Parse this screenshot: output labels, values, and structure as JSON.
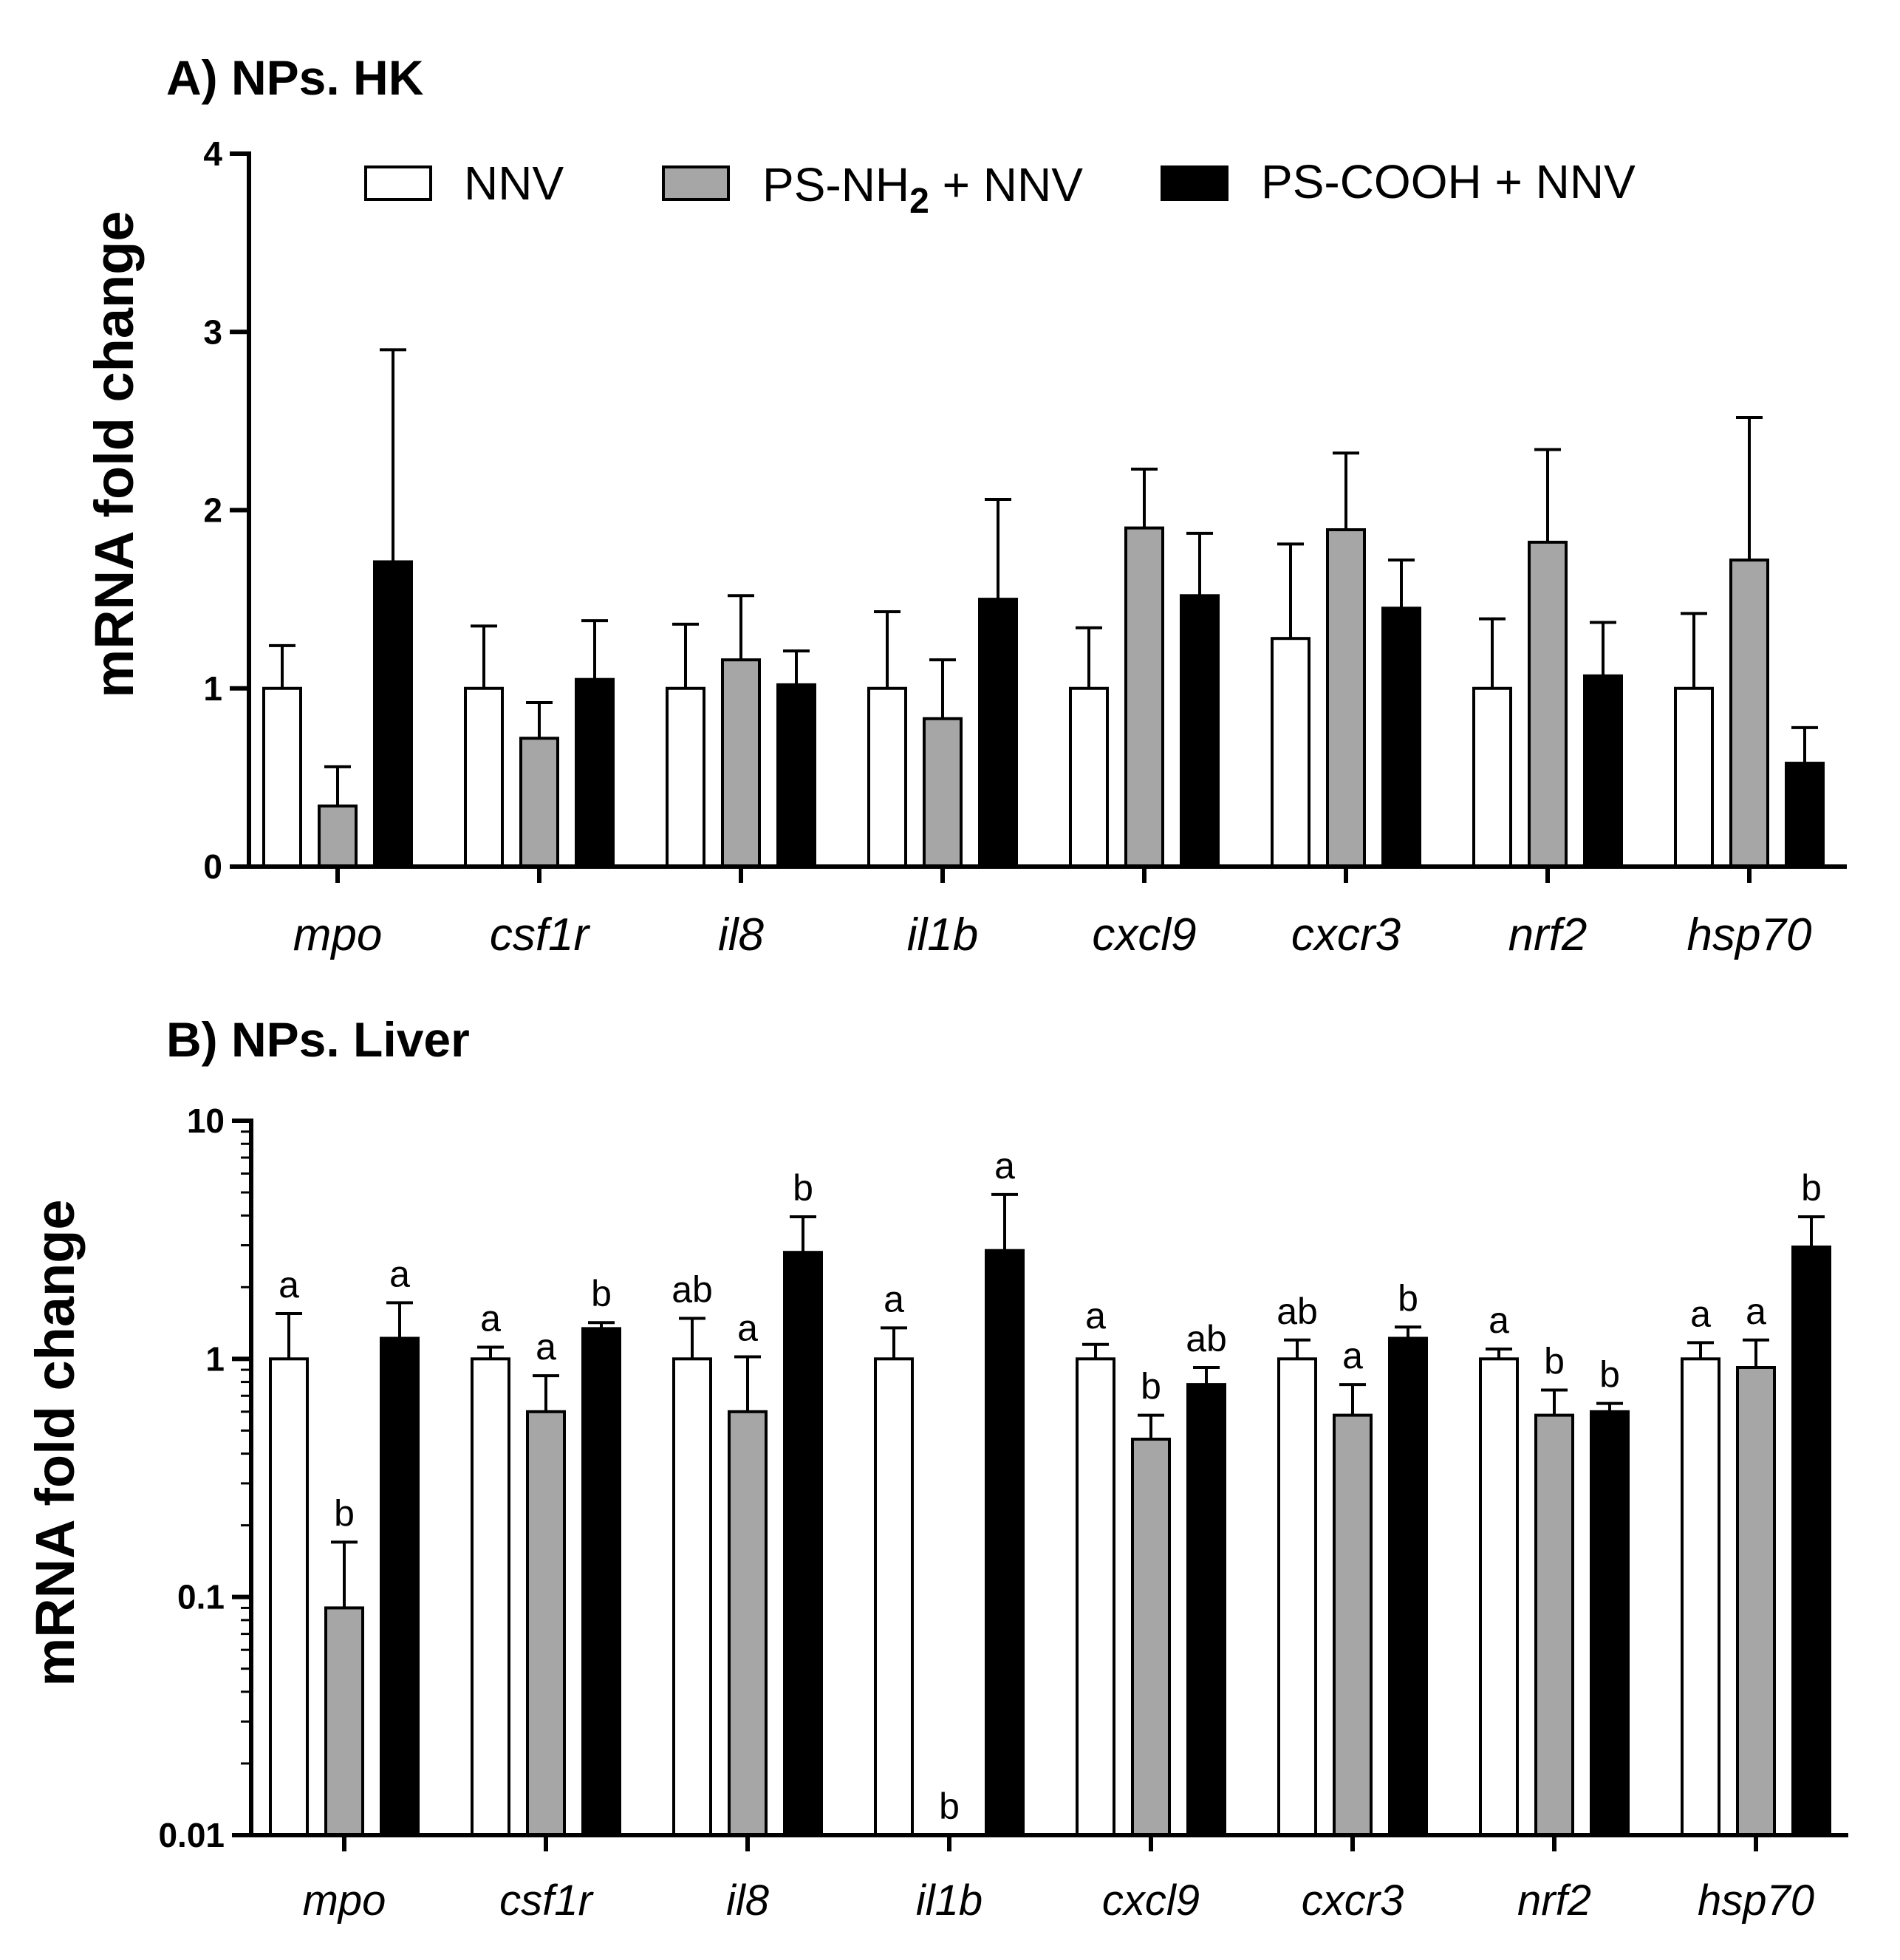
{
  "chart_data": [
    {
      "panel": "A",
      "type": "bar",
      "title": "A) NPs. HK",
      "ylabel": "mRNA fold change",
      "xlabel": "",
      "yscale": "linear",
      "ylim": [
        0,
        4
      ],
      "yticks": [
        "0",
        "1",
        "2",
        "3",
        "4"
      ],
      "legend": {
        "placement": "top",
        "entries": [
          {
            "label": "NNV",
            "color": "#ffffff"
          },
          {
            "label": "PS-NH",
            "sub": "2",
            "label_suffix": " + NNV",
            "color": "#a6a6a6"
          },
          {
            "label": "PS-COOH + NNV",
            "color": "#000000"
          }
        ]
      },
      "categories": [
        "mpo",
        "csf1r",
        "il8",
        "il1b",
        "cxcl9",
        "cxcr3",
        "nrf2",
        "hsp70"
      ],
      "series": [
        {
          "name": "NNV",
          "color": "#ffffff",
          "values": [
            1.0,
            1.0,
            1.0,
            1.0,
            1.0,
            1.28,
            1.0,
            1.0
          ],
          "errors": [
            0.24,
            0.35,
            0.36,
            0.43,
            0.34,
            0.53,
            0.39,
            0.42
          ]
        },
        {
          "name": "PS-NH2 + NNV",
          "color": "#a6a6a6",
          "values": [
            0.34,
            0.72,
            1.16,
            0.83,
            1.9,
            1.89,
            1.82,
            1.72
          ],
          "errors": [
            0.22,
            0.2,
            0.36,
            0.33,
            0.33,
            0.43,
            0.52,
            0.8
          ]
        },
        {
          "name": "PS-COOH + NNV",
          "color": "#000000",
          "values": [
            1.71,
            1.05,
            1.02,
            1.5,
            1.52,
            1.45,
            1.07,
            0.58
          ],
          "errors": [
            1.19,
            0.33,
            0.19,
            0.56,
            0.35,
            0.27,
            0.3,
            0.2
          ]
        }
      ]
    },
    {
      "panel": "B",
      "type": "bar",
      "title": "B) NPs. Liver",
      "ylabel": "mRNA fold change",
      "xlabel": "",
      "yscale": "log",
      "ylim": [
        0.01,
        10
      ],
      "yticks": [
        "0.01",
        "0.1",
        "1",
        "10"
      ],
      "categories": [
        "mpo",
        "csf1r",
        "il8",
        "il1b",
        "cxcl9",
        "cxcr3",
        "nrf2",
        "hsp70"
      ],
      "series": [
        {
          "name": "NNV",
          "color": "#ffffff",
          "values": [
            1.0,
            1.0,
            1.0,
            1.0,
            1.0,
            1.0,
            1.0,
            1.0
          ],
          "err_top": [
            1.55,
            1.12,
            1.48,
            1.35,
            1.15,
            1.2,
            1.1,
            1.17
          ],
          "letters": [
            "a",
            "a",
            "ab",
            "a",
            "a",
            "ab",
            "a",
            "a"
          ]
        },
        {
          "name": "PS-NH2 + NNV",
          "color": "#a6a6a6",
          "values": [
            0.09,
            0.6,
            0.6,
            0.01,
            0.46,
            0.58,
            0.58,
            0.92
          ],
          "err_top": [
            0.17,
            0.85,
            1.02,
            null,
            0.58,
            0.78,
            0.74,
            1.2
          ],
          "letters": [
            "b",
            "a",
            "a",
            "b",
            "b",
            "a",
            "b",
            "a"
          ]
        },
        {
          "name": "PS-COOH + NNV",
          "color": "#000000",
          "values": [
            1.22,
            1.34,
            2.8,
            2.85,
            0.78,
            1.22,
            0.6,
            2.95
          ],
          "err_top": [
            1.72,
            1.42,
            3.95,
            4.9,
            0.92,
            1.36,
            0.65,
            3.95
          ],
          "letters": [
            "a",
            "b",
            "b",
            "a",
            "ab",
            "b",
            "b",
            "b"
          ]
        }
      ]
    }
  ]
}
